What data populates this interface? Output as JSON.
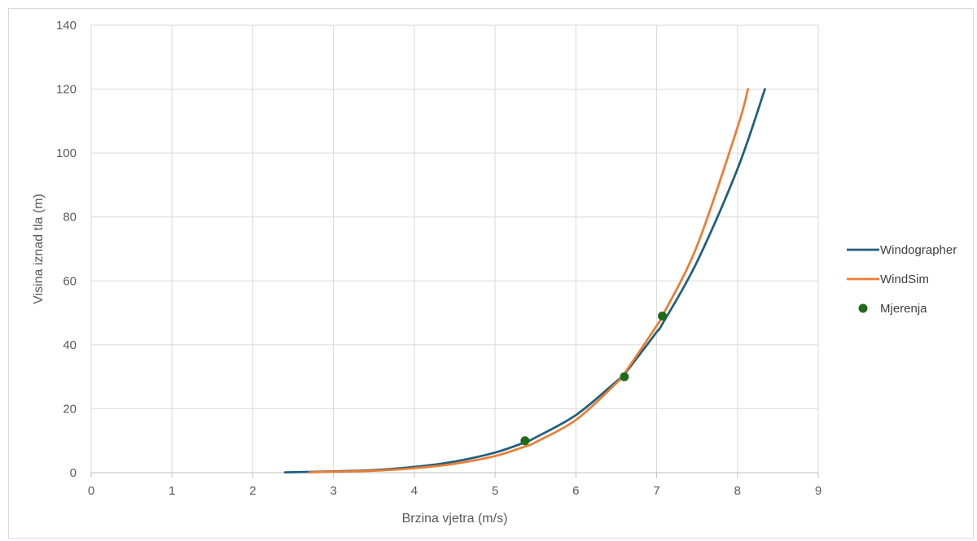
{
  "chart_data": {
    "type": "line",
    "title": "",
    "xlabel": "Brzina vjetra (m/s)",
    "ylabel": "Visina iznad tla (m)",
    "xlim": [
      0,
      9
    ],
    "ylim": [
      0,
      140
    ],
    "xticks": [
      "0",
      "1",
      "2",
      "3",
      "4",
      "5",
      "6",
      "7",
      "8",
      "9"
    ],
    "yticks": [
      "0",
      "20",
      "40",
      "60",
      "80",
      "100",
      "120",
      "140"
    ],
    "grid": true,
    "legend_position": "right",
    "series": [
      {
        "name": "Windographer",
        "kind": "line",
        "color": "#1f5f7f",
        "points": [
          [
            2.4,
            0.1
          ],
          [
            3.0,
            0.4
          ],
          [
            3.5,
            0.8
          ],
          [
            4.0,
            1.8
          ],
          [
            4.5,
            3.5
          ],
          [
            5.0,
            6.3
          ],
          [
            5.37,
            9.5
          ],
          [
            5.5,
            11.0
          ],
          [
            6.0,
            18.0
          ],
          [
            6.5,
            28.5
          ],
          [
            6.6,
            30.8
          ],
          [
            7.0,
            44.0
          ],
          [
            7.07,
            46.5
          ],
          [
            7.5,
            66.0
          ],
          [
            8.0,
            95.0
          ],
          [
            8.34,
            120.0
          ]
        ]
      },
      {
        "name": "WindSim",
        "kind": "line",
        "color": "#ed7d31",
        "points": [
          [
            2.7,
            0.1
          ],
          [
            3.0,
            0.3
          ],
          [
            3.5,
            0.6
          ],
          [
            4.0,
            1.4
          ],
          [
            4.5,
            2.8
          ],
          [
            5.0,
            5.2
          ],
          [
            5.37,
            8.2
          ],
          [
            5.5,
            9.5
          ],
          [
            6.0,
            16.5
          ],
          [
            6.5,
            28.0
          ],
          [
            6.6,
            31.0
          ],
          [
            7.0,
            46.0
          ],
          [
            7.07,
            49.0
          ],
          [
            7.5,
            71.0
          ],
          [
            8.0,
            108.0
          ],
          [
            8.13,
            120.0
          ]
        ]
      },
      {
        "name": "Mjerenja",
        "kind": "scatter",
        "color": "#1e6b1e",
        "points": [
          [
            5.37,
            10
          ],
          [
            6.6,
            30
          ],
          [
            7.07,
            49
          ]
        ]
      }
    ]
  }
}
